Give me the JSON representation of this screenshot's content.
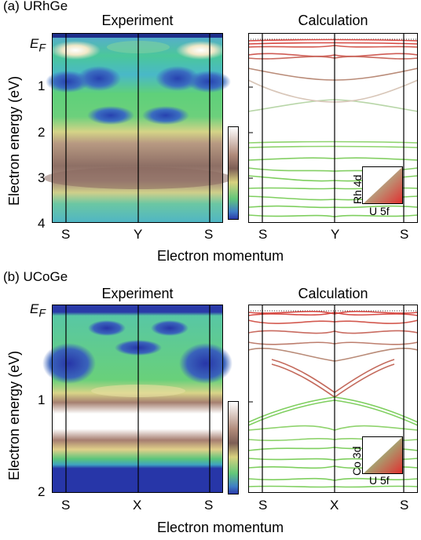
{
  "panels": [
    {
      "tag": "(a) URhGe",
      "exp_title": "Experiment",
      "calc_title": "Calculation",
      "y_label": "Electron energy (eV)",
      "x_label": "Electron momentum",
      "ef_main": "E",
      "ef_sub": "F",
      "y_ticks": [
        "1",
        "2",
        "3",
        "4"
      ],
      "x_ticks": [
        "S",
        "Y",
        "S"
      ],
      "legend_top": "Rh 4d",
      "legend_bottom": "U 5f"
    },
    {
      "tag": "(b) UCoGe",
      "exp_title": "Experiment",
      "calc_title": "Calculation",
      "y_label": "Electron energy (eV)",
      "x_label": "Electron momentum",
      "ef_main": "E",
      "ef_sub": "F",
      "y_ticks": [
        "1",
        "2"
      ],
      "x_ticks": [
        "S",
        "X",
        "S"
      ],
      "legend_top": "Co 3d",
      "legend_bottom": "U 5f"
    }
  ],
  "colors": {
    "band_green": "#7fcf5f",
    "band_red": "#d64a44",
    "band_brown": "#b98b78",
    "map_blue": "#2b3fb0",
    "map_white": "#ffffff"
  }
}
